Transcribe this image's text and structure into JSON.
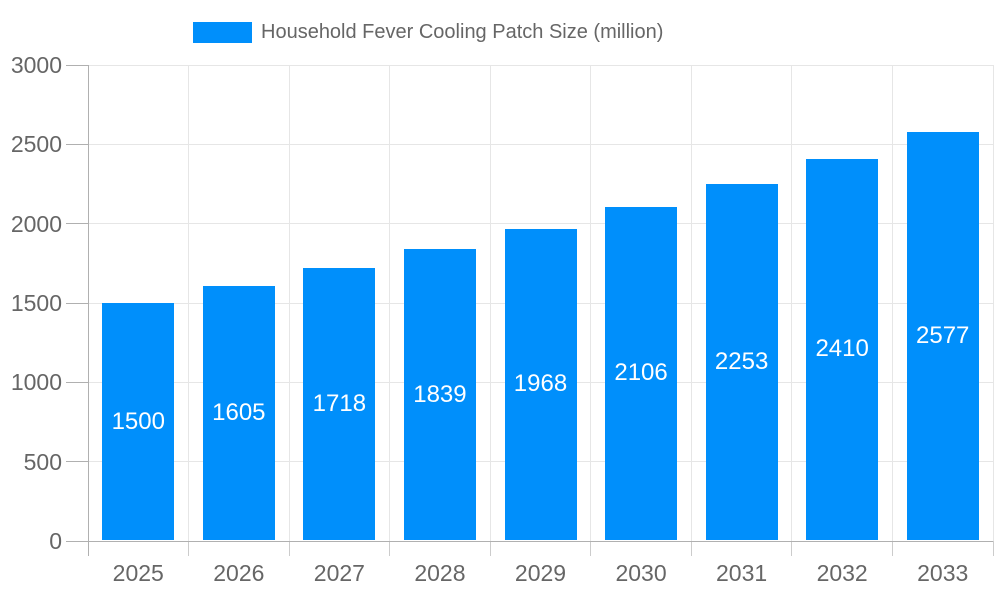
{
  "chart_data": {
    "type": "bar",
    "title": "Household Fever Cooling Patch Size (million)",
    "legend": [
      "Household Fever Cooling Patch Size (million)"
    ],
    "legend_position": "top-center",
    "categories": [
      "2025",
      "2026",
      "2027",
      "2028",
      "2029",
      "2030",
      "2031",
      "2032",
      "2033"
    ],
    "values": [
      1500,
      1605,
      1718,
      1839,
      1968,
      2106,
      2253,
      2410,
      2577
    ],
    "xlabel": "",
    "ylabel": "",
    "ylim": [
      0,
      3000
    ],
    "yticks": [
      0,
      500,
      1000,
      1500,
      2000,
      2500,
      3000
    ],
    "grid": true,
    "colors": {
      "bar": "#008FFB",
      "axis_text": "#666666",
      "legend_text": "#666666",
      "grid_line": "#e6e6e6",
      "axis_line": "#b0b0b0",
      "tick": "#cccccc",
      "value_label": "#ffffff"
    }
  }
}
